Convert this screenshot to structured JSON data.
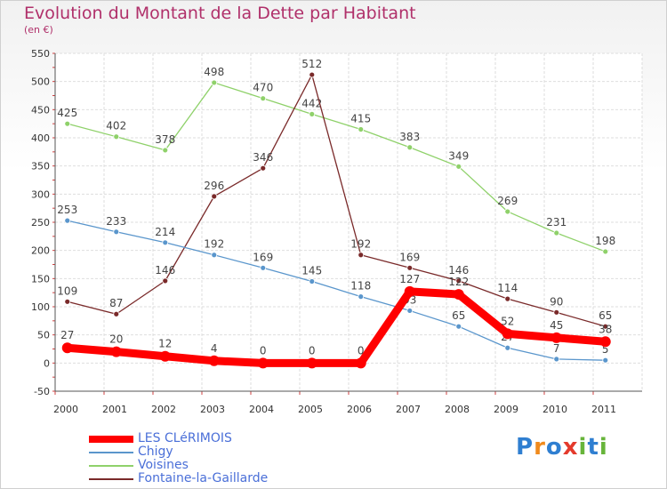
{
  "header": {
    "title": "Evolution du Montant de la Dette par Habitant",
    "unit": "(en €)"
  },
  "logo": {
    "text": "Proxiti",
    "colors": [
      "#2f7fd1",
      "#f08a1c",
      "#2f7fd1",
      "#e43a2c",
      "#67b43a",
      "#2f7fd1",
      "#67b43a"
    ]
  },
  "chart_data": {
    "type": "line",
    "title": "Evolution du Montant de la Dette par Habitant",
    "subtitle": "(en €)",
    "xlabel": "",
    "ylabel": "",
    "ylim": [
      -50,
      550
    ],
    "yticks": [
      "-50",
      "0",
      "50",
      "100",
      "150",
      "200",
      "250",
      "300",
      "350",
      "400",
      "450",
      "500",
      "550"
    ],
    "categories": [
      "2000",
      "2001",
      "2002",
      "2003",
      "2004",
      "2005",
      "2006",
      "2007",
      "2008",
      "2009",
      "2010",
      "2011"
    ],
    "grid": true,
    "legend": "bottom-left",
    "series": [
      {
        "name": "Voisines",
        "color": "#8fd16a",
        "width": 1.3,
        "labels": true,
        "labelPos": "above",
        "values": [
          425,
          402,
          378,
          498,
          470,
          442,
          415,
          383,
          349,
          269,
          231,
          198
        ]
      },
      {
        "name": "Fontaine-la-Gaillarde",
        "color": "#7a2a2a",
        "width": 1.3,
        "labels": true,
        "labelPos": "above",
        "values": [
          109,
          87,
          146,
          296,
          346,
          512,
          192,
          169,
          146,
          114,
          90,
          65
        ]
      },
      {
        "name": "Chigy",
        "color": "#5a96cc",
        "width": 1.3,
        "labels": true,
        "labelPos": "above",
        "values": [
          253,
          233,
          214,
          192,
          169,
          145,
          118,
          93,
          65,
          27,
          7,
          5
        ]
      },
      {
        "name": "LES CLéRIMOIS",
        "color": "#ff0000",
        "width": 9,
        "labels": true,
        "labelPos": "above",
        "values": [
          27,
          20,
          12,
          4,
          0,
          0,
          0,
          127,
          122,
          52,
          45,
          38
        ]
      }
    ],
    "legend_order": [
      "LES CLéRIMOIS",
      "Chigy",
      "Voisines",
      "Fontaine-la-Gaillarde"
    ]
  }
}
